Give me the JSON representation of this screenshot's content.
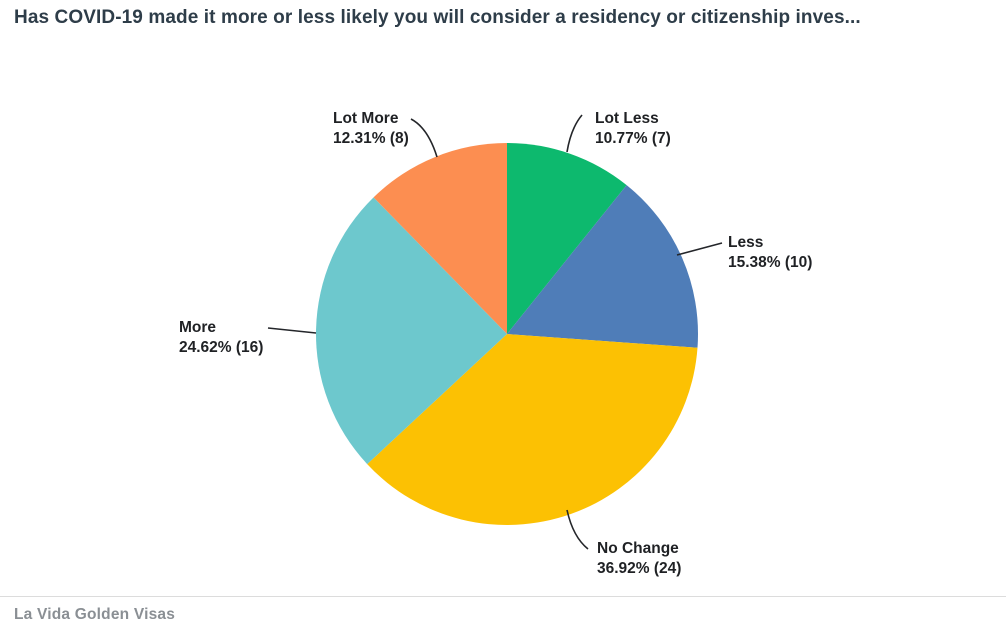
{
  "header": {
    "title": "Has COVID-19 made it more or less likely you will consider a residency or citizenship inves..."
  },
  "chart_data": {
    "type": "pie",
    "title": "Has COVID-19 made it more or less likely you will consider a residency or citizenship inves...",
    "legend_position": "none",
    "labels_style": "outside-with-leader-lines",
    "slices": [
      {
        "label": "Lot Less",
        "percent": 10.77,
        "count": 7,
        "value_display": "10.77% (7)",
        "color": "#0db96e"
      },
      {
        "label": "Less",
        "percent": 15.38,
        "count": 10,
        "value_display": "15.38% (10)",
        "color": "#4f7db8"
      },
      {
        "label": "No Change",
        "percent": 36.92,
        "count": 24,
        "value_display": "36.92% (24)",
        "color": "#fcc103"
      },
      {
        "label": "More",
        "percent": 24.62,
        "count": 16,
        "value_display": "24.62% (16)",
        "color": "#6dc8cd"
      },
      {
        "label": "Lot More",
        "percent": 12.31,
        "count": 8,
        "value_display": "12.31% (8)",
        "color": "#fc8e51"
      }
    ],
    "start_angle_deg": 0,
    "direction": "clockwise"
  },
  "footer": {
    "brand": "La Vida Golden Visas"
  }
}
